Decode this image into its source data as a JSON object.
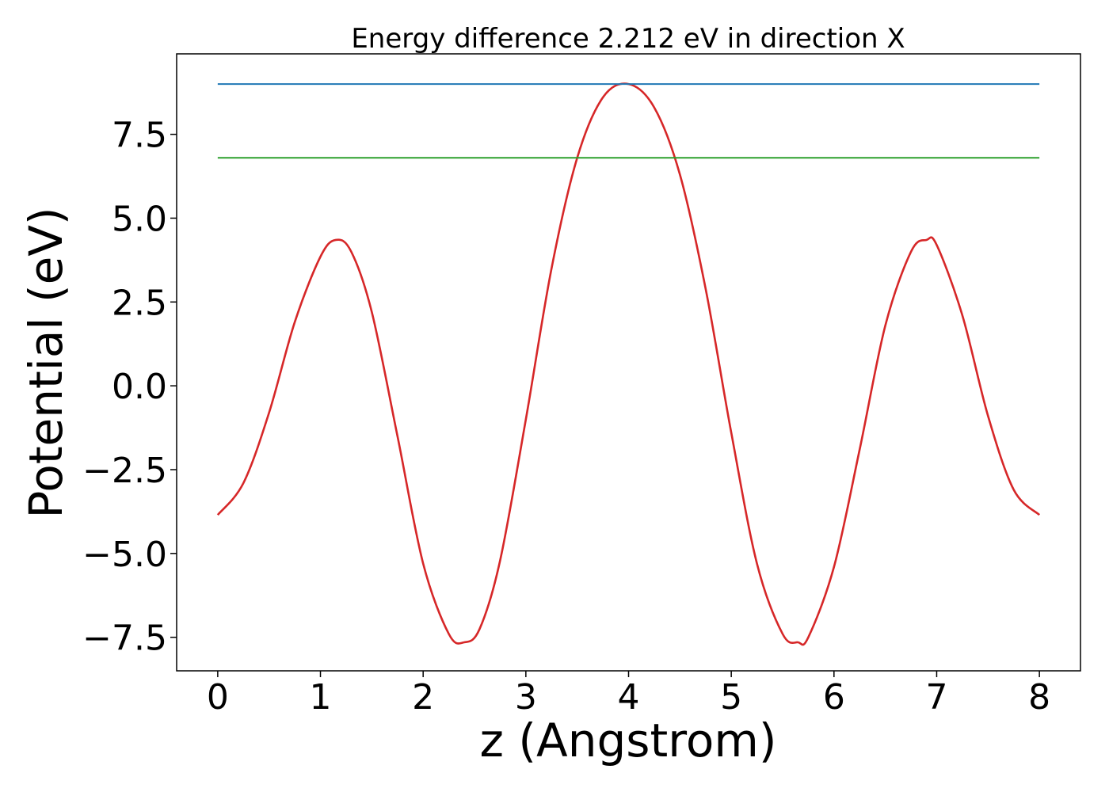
{
  "chart_data": {
    "type": "line",
    "title": "Energy difference 2.212 eV in direction X",
    "xlabel": "z (Angstrom)",
    "ylabel": "Potential (eV)",
    "xlim": [
      -0.4,
      8.4
    ],
    "ylim": [
      -8.5,
      9.9
    ],
    "xticks": [
      0,
      1,
      2,
      3,
      4,
      5,
      6,
      7,
      8
    ],
    "xtick_labels": [
      "0",
      "1",
      "2",
      "3",
      "4",
      "5",
      "6",
      "7",
      "8"
    ],
    "yticks": [
      -7.5,
      -5.0,
      -2.5,
      0.0,
      2.5,
      5.0,
      7.5
    ],
    "ytick_labels": [
      "−7.5",
      "−5.0",
      "−2.5",
      "0.0",
      "2.5",
      "5.0",
      "7.5"
    ],
    "grid": false,
    "series": [
      {
        "color": "#d62728",
        "x": [
          0,
          0.25,
          0.5,
          0.75,
          1.0,
          1.15,
          1.3,
          1.5,
          1.75,
          2.0,
          2.25,
          2.4,
          2.55,
          2.75,
          3.0,
          3.25,
          3.5,
          3.75,
          4.0,
          4.25,
          4.5,
          4.75,
          5.0,
          5.25,
          5.5,
          5.65,
          5.75,
          6.0,
          6.25,
          6.5,
          6.75,
          6.9,
          7.0,
          7.25,
          7.5,
          7.75,
          8.0
        ],
        "y": [
          -3.85,
          -2.9,
          -0.8,
          1.9,
          3.85,
          4.35,
          4.0,
          2.2,
          -1.5,
          -5.3,
          -7.4,
          -7.65,
          -7.25,
          -5.2,
          -1.0,
          3.5,
          6.8,
          8.6,
          9.0,
          8.3,
          6.3,
          2.9,
          -1.4,
          -5.3,
          -7.4,
          -7.65,
          -7.5,
          -5.4,
          -1.9,
          1.8,
          4.0,
          4.35,
          4.2,
          2.1,
          -0.9,
          -3.1,
          -3.85
        ]
      },
      {
        "color": "#1f77b4",
        "x": [
          0,
          8
        ],
        "y": [
          9.0,
          9.0
        ]
      },
      {
        "color": "#2ca02c",
        "x": [
          0,
          8
        ],
        "y": [
          6.8,
          6.8
        ]
      }
    ]
  }
}
